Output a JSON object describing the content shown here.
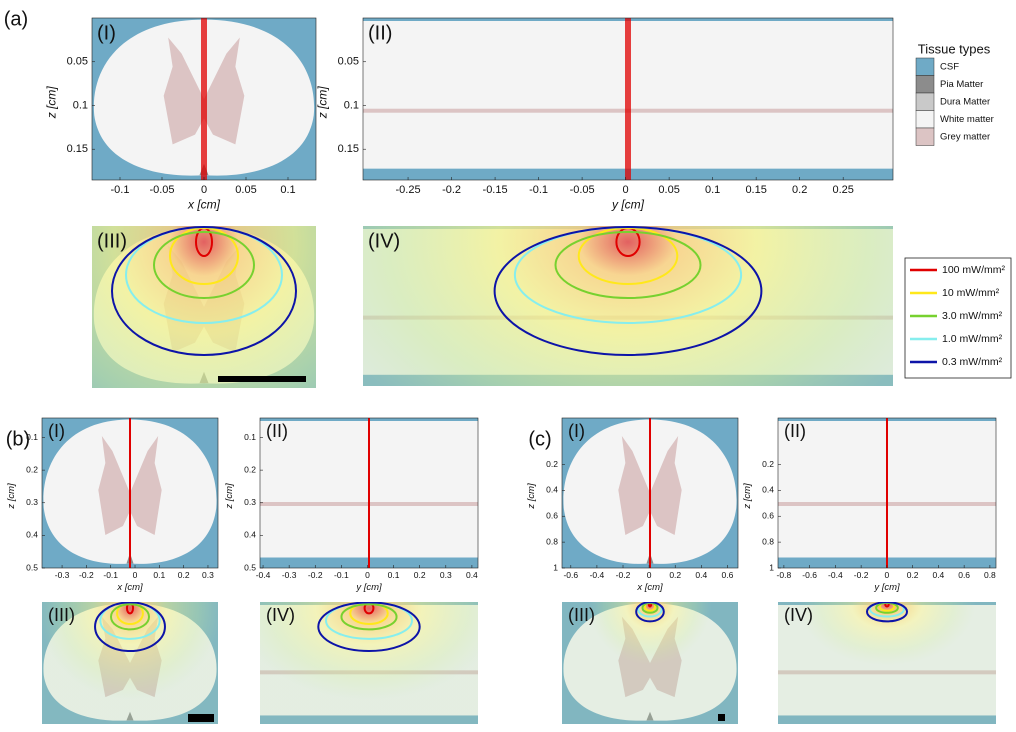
{
  "panels": [
    {
      "label": "(a)",
      "views": [
        {
          "label": "(I)",
          "xlabel": "x [cm]",
          "zlabel": "z [cm]",
          "xticks": [
            -0.1,
            -0.05,
            0,
            0.05,
            0.1
          ],
          "zticks": [
            0.05,
            0.1,
            0.15
          ]
        },
        {
          "label": "(II)",
          "xlabel": "y [cm]",
          "zlabel": "z [cm]",
          "xticks": [
            -0.25,
            -0.2,
            -0.15,
            -0.1,
            -0.05,
            0,
            0.05,
            0.1,
            0.15,
            0.2,
            0.25
          ],
          "zticks": [
            0.05,
            0.1,
            0.15
          ]
        },
        {
          "label": "(III)"
        },
        {
          "label": "(IV)"
        }
      ]
    },
    {
      "label": "(b)",
      "views": [
        {
          "label": "(I)",
          "xlabel": "x [cm]",
          "zlabel": "z [cm]",
          "xticks": [
            -0.3,
            -0.2,
            -0.1,
            0,
            0.1,
            0.2,
            0.3
          ],
          "zticks": [
            0.1,
            0.2,
            0.3,
            0.4,
            0.5
          ]
        },
        {
          "label": "(II)",
          "xlabel": "y [cm]",
          "zlabel": "z [cm]",
          "xticks": [
            -0.4,
            -0.3,
            -0.2,
            -0.1,
            0,
            0.1,
            0.2,
            0.3,
            0.4
          ],
          "zticks": [
            0.1,
            0.2,
            0.3,
            0.4,
            0.5
          ]
        },
        {
          "label": "(III)"
        },
        {
          "label": "(IV)"
        }
      ]
    },
    {
      "label": "(c)",
      "views": [
        {
          "label": "(I)",
          "xlabel": "x [cm]",
          "zlabel": "z [cm]",
          "xticks": [
            -0.6,
            -0.4,
            -0.2,
            0,
            0.2,
            0.4,
            0.6
          ],
          "zticks": [
            0.2,
            0.4,
            0.6,
            0.8,
            1
          ]
        },
        {
          "label": "(II)",
          "xlabel": "y [cm]",
          "zlabel": "z [cm]",
          "xticks": [
            -0.8,
            -0.6,
            -0.4,
            -0.2,
            0,
            0.2,
            0.4,
            0.6,
            0.8
          ],
          "zticks": [
            0.2,
            0.4,
            0.6,
            0.8,
            1
          ]
        },
        {
          "label": "(III)"
        },
        {
          "label": "(IV)"
        }
      ]
    }
  ],
  "tissue_legend": {
    "title": "Tissue types",
    "items": [
      {
        "label": "CSF",
        "color": "#6faac6"
      },
      {
        "label": "Pia Matter",
        "color": "#8c8c8c"
      },
      {
        "label": "Dura Matter",
        "color": "#c9c9c9"
      },
      {
        "label": "White matter",
        "color": "#f4f4f4"
      },
      {
        "label": "Grey matter",
        "color": "#dcc4c4"
      }
    ]
  },
  "irradiance_legend": {
    "items": [
      {
        "label": "100 mW/mm²",
        "color": "#e00000"
      },
      {
        "label": "10 mW/mm²",
        "color": "#ffe81a"
      },
      {
        "label": "3.0 mW/mm²",
        "color": "#77d12f"
      },
      {
        "label": "1.0 mW/mm²",
        "color": "#86eeee"
      },
      {
        "label": "0.3 mW/mm²",
        "color": "#0d14a8"
      }
    ]
  }
}
